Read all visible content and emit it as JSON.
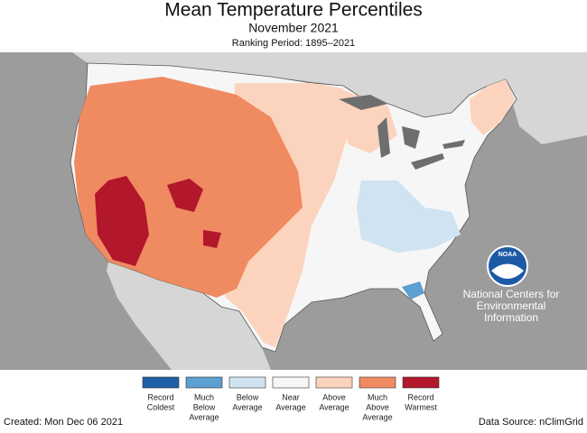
{
  "header": {
    "title": "Mean Temperature Percentiles",
    "subtitle": "November 2021",
    "period": "Ranking Period: 1895–2021"
  },
  "logo": {
    "mark": "NOAA",
    "lines": [
      "National Centers for",
      "Environmental",
      "Information"
    ]
  },
  "legend": [
    {
      "lines": [
        "Record",
        "Coldest"
      ],
      "color": "#1f5fa8"
    },
    {
      "lines": [
        "Much",
        "Below",
        "Average"
      ],
      "color": "#5c9fd1"
    },
    {
      "lines": [
        "Below",
        "Average"
      ],
      "color": "#cfe3f1"
    },
    {
      "lines": [
        "Near",
        "Average"
      ],
      "color": "#f6f6f6"
    },
    {
      "lines": [
        "Above",
        "Average"
      ],
      "color": "#fcd4be"
    },
    {
      "lines": [
        "Much",
        "Above",
        "Average"
      ],
      "color": "#ef8a61"
    },
    {
      "lines": [
        "Record",
        "Warmest"
      ],
      "color": "#b3172c"
    }
  ],
  "footer": {
    "created": "Created: Mon Dec 06 2021",
    "source": "Data Source: nClimGrid"
  }
}
